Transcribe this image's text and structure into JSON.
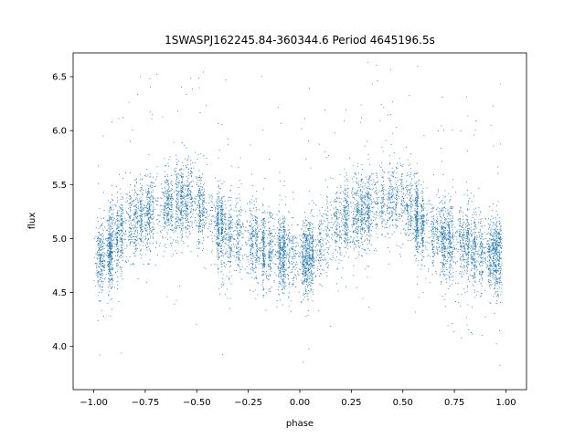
{
  "chart_data": {
    "type": "scatter",
    "title": "1SWASPJ162245.84-360344.6 Period 4645196.5s",
    "xlabel": "phase",
    "ylabel": "flux",
    "xlim": [
      -1.1,
      1.1
    ],
    "ylim": [
      3.6,
      6.72
    ],
    "xticks": [
      -1.0,
      -0.75,
      -0.5,
      -0.25,
      0.0,
      0.25,
      0.5,
      0.75,
      1.0
    ],
    "xtick_labels": [
      "−1.00",
      "−0.75",
      "−0.50",
      "−0.25",
      "0.00",
      "0.25",
      "0.50",
      "0.75",
      "1.00"
    ],
    "yticks": [
      4.0,
      4.5,
      5.0,
      5.5,
      6.0,
      6.5
    ],
    "ytick_labels": [
      "4.0",
      "4.5",
      "5.0",
      "5.5",
      "6.0",
      "6.5"
    ],
    "grid": false,
    "marker_color": "#1f77b4",
    "phase_range": [
      -1.0,
      0.98
    ],
    "light_curve": {
      "phase": [
        0.0,
        0.05,
        0.1,
        0.15,
        0.2,
        0.25,
        0.3,
        0.35,
        0.4,
        0.45,
        0.5,
        0.55,
        0.6,
        0.65,
        0.7,
        0.75,
        0.8,
        0.85,
        0.9,
        0.95,
        1.0
      ],
      "flux": [
        4.82,
        4.85,
        4.95,
        5.1,
        5.18,
        5.22,
        5.26,
        5.3,
        5.35,
        5.38,
        5.35,
        5.25,
        5.12,
        5.05,
        5.0,
        4.98,
        4.95,
        4.9,
        4.88,
        4.84,
        4.82
      ]
    },
    "flux_spread": 0.18,
    "approx_points": 9000
  }
}
